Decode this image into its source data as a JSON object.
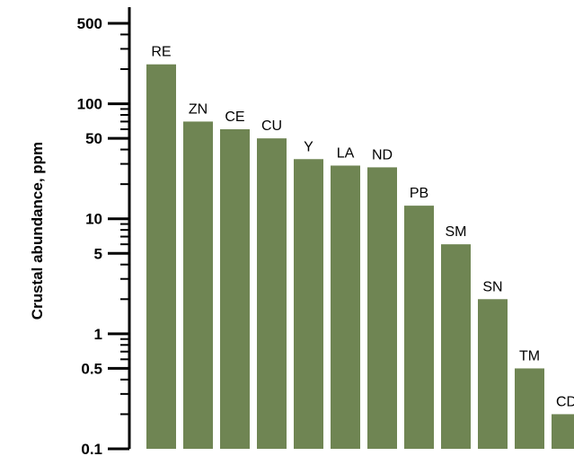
{
  "chart_data": {
    "type": "bar",
    "title": "",
    "xlabel": "",
    "ylabel": "Crustal abundance, ppm",
    "yscale": "log",
    "ylim": [
      0.1,
      500
    ],
    "yticks": [
      {
        "value": 500,
        "label": "500"
      },
      {
        "value": 100,
        "label": "100"
      },
      {
        "value": 50,
        "label": "50"
      },
      {
        "value": 10,
        "label": "10"
      },
      {
        "value": 5,
        "label": "5"
      },
      {
        "value": 1,
        "label": "1"
      },
      {
        "value": 0.5,
        "label": "0.5"
      },
      {
        "value": 0.1,
        "label": "0.1"
      }
    ],
    "categories": [
      "RE",
      "ZN",
      "CE",
      "CU",
      "Y",
      "LA",
      "ND",
      "PB",
      "SM",
      "SN",
      "TM",
      "CD"
    ],
    "values": [
      220,
      70,
      60,
      50,
      33,
      29,
      28,
      13,
      6,
      2,
      0.5,
      0.2
    ],
    "bar_color": "#6f8553",
    "grid": false,
    "legend": "none"
  }
}
